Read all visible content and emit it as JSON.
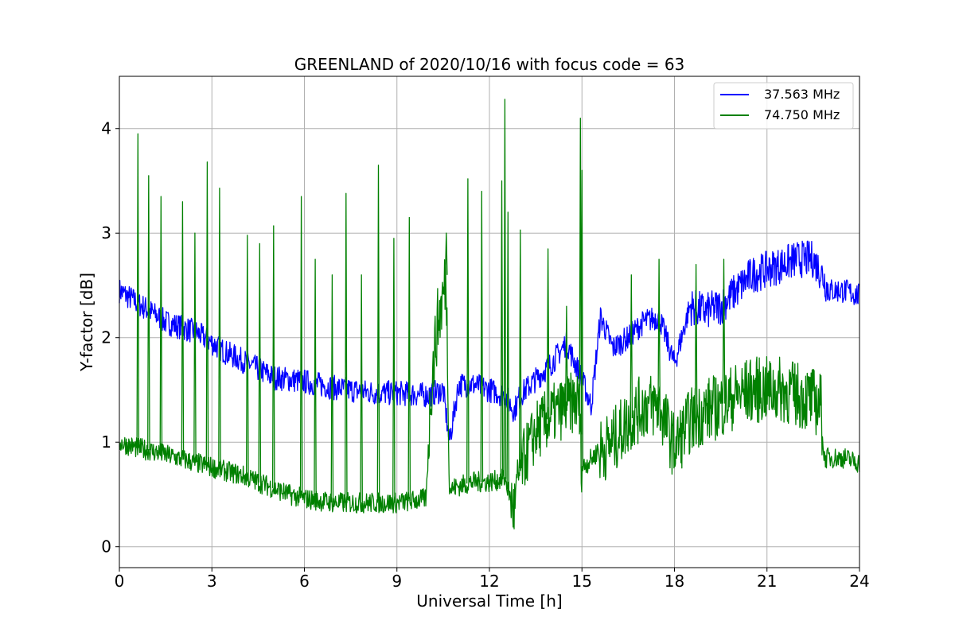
{
  "chart_data": {
    "type": "line",
    "title": "GREENLAND of 2020/10/16 with focus code = 63",
    "xlabel": "Universal Time [h]",
    "ylabel": "Y-factor [dB]",
    "xlim": [
      0,
      24
    ],
    "ylim": [
      -0.2,
      4.5
    ],
    "xticks": [
      0,
      3,
      6,
      9,
      12,
      15,
      18,
      21,
      24
    ],
    "yticks": [
      0,
      1,
      2,
      3,
      4
    ],
    "grid": true,
    "legend_position": "top-right",
    "series": [
      {
        "name": "37.563 MHz",
        "color": "#0000ff",
        "x": [
          0,
          0.25,
          0.5,
          1,
          1.5,
          2,
          2.5,
          3,
          3.5,
          4,
          4.5,
          5,
          5.5,
          6,
          6.5,
          7,
          7.5,
          8,
          8.5,
          9,
          9.5,
          10,
          10.5,
          10.7,
          11,
          11.5,
          12,
          12.5,
          12.8,
          13,
          13.5,
          14,
          14.5,
          15,
          15.3,
          15.6,
          16,
          16.5,
          17,
          17.5,
          18,
          18.5,
          19,
          19.5,
          20,
          20.5,
          21,
          21.5,
          22,
          22.5,
          22.8,
          23,
          23.5,
          24
        ],
        "y": [
          2.45,
          2.4,
          2.35,
          2.25,
          2.15,
          2.1,
          2.05,
          1.95,
          1.85,
          1.78,
          1.7,
          1.62,
          1.6,
          1.58,
          1.55,
          1.52,
          1.5,
          1.48,
          1.47,
          1.47,
          1.46,
          1.45,
          1.5,
          1.0,
          1.55,
          1.55,
          1.5,
          1.45,
          1.3,
          1.45,
          1.6,
          1.75,
          1.95,
          1.6,
          1.35,
          2.2,
          1.9,
          2.0,
          2.15,
          2.2,
          1.75,
          2.3,
          2.25,
          2.3,
          2.45,
          2.6,
          2.65,
          2.7,
          2.75,
          2.75,
          2.6,
          2.45,
          2.45,
          2.4
        ],
        "noise": 0.12
      },
      {
        "name": "74.750 MHz",
        "color": "#008000",
        "x": [
          0,
          0.5,
          1,
          1.5,
          2,
          2.5,
          3,
          3.5,
          4,
          4.5,
          5,
          5.5,
          6,
          6.5,
          7,
          7.5,
          8,
          8.5,
          9,
          9.5,
          9.95,
          10.1,
          10.3,
          10.5,
          10.6,
          10.7,
          11,
          11.5,
          12,
          12.5,
          12.8,
          13,
          13.5,
          14,
          14.5,
          14.9,
          15,
          15.5,
          16,
          16.5,
          17,
          17.5,
          18,
          18.5,
          19,
          19.5,
          20,
          20.5,
          21,
          21.5,
          22,
          22.5,
          22.75,
          22.85,
          23.5,
          24
        ],
        "y": [
          1.0,
          0.95,
          0.92,
          0.88,
          0.84,
          0.8,
          0.76,
          0.72,
          0.68,
          0.62,
          0.56,
          0.5,
          0.46,
          0.44,
          0.42,
          0.42,
          0.42,
          0.42,
          0.42,
          0.44,
          0.46,
          1.5,
          2.1,
          2.4,
          2.6,
          0.55,
          0.58,
          0.62,
          0.62,
          0.65,
          0.35,
          0.75,
          1.1,
          1.25,
          1.35,
          1.4,
          0.75,
          0.9,
          1.0,
          1.2,
          1.35,
          1.35,
          0.95,
          1.2,
          1.3,
          1.35,
          1.45,
          1.5,
          1.5,
          1.5,
          1.45,
          1.4,
          1.35,
          0.85,
          0.85,
          0.8
        ],
        "noise": 0.1,
        "spikes": [
          [
            0.6,
            3.95
          ],
          [
            0.95,
            3.55
          ],
          [
            1.35,
            3.35
          ],
          [
            2.05,
            3.3
          ],
          [
            2.45,
            3.0
          ],
          [
            2.85,
            3.68
          ],
          [
            3.25,
            3.43
          ],
          [
            4.15,
            2.98
          ],
          [
            4.55,
            2.9
          ],
          [
            5.0,
            3.07
          ],
          [
            5.9,
            3.35
          ],
          [
            6.35,
            2.75
          ],
          [
            6.9,
            2.6
          ],
          [
            7.35,
            3.38
          ],
          [
            7.85,
            2.6
          ],
          [
            8.4,
            3.65
          ],
          [
            8.9,
            2.95
          ],
          [
            9.4,
            3.15
          ],
          [
            10.6,
            3.0
          ],
          [
            11.3,
            3.52
          ],
          [
            11.75,
            3.4
          ],
          [
            12.4,
            3.5
          ],
          [
            12.5,
            4.28
          ],
          [
            12.6,
            3.2
          ],
          [
            13.0,
            3.03
          ],
          [
            13.9,
            2.85
          ],
          [
            14.5,
            2.3
          ],
          [
            14.95,
            4.1
          ],
          [
            15.0,
            3.6
          ],
          [
            16.6,
            2.6
          ],
          [
            17.5,
            2.75
          ],
          [
            18.7,
            2.7
          ],
          [
            19.6,
            2.75
          ]
        ]
      }
    ]
  }
}
